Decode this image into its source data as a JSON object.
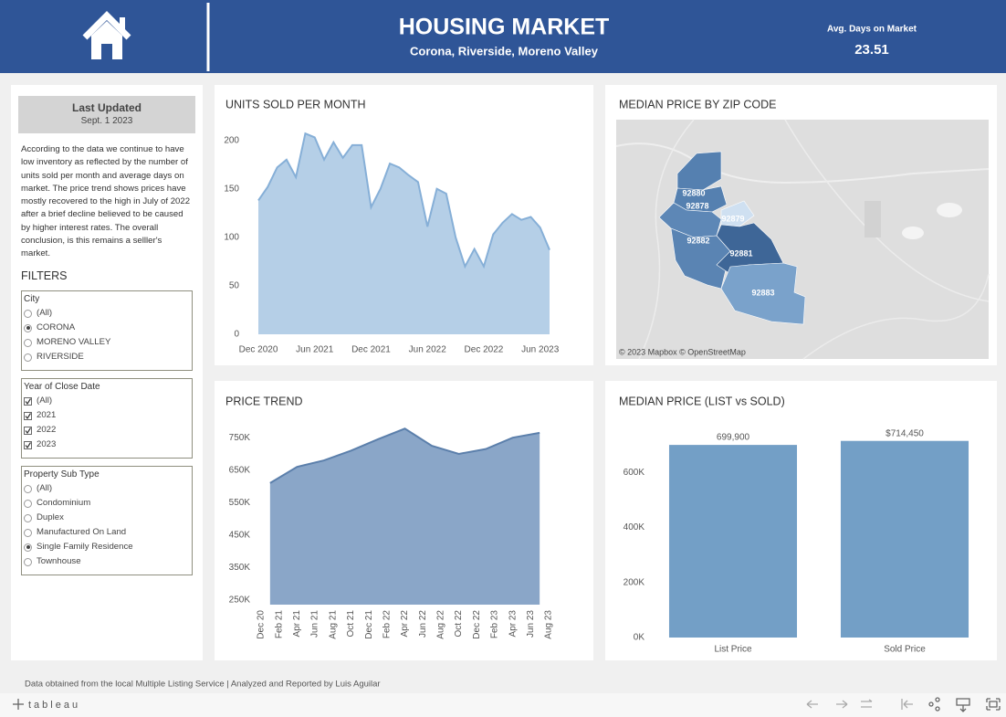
{
  "header": {
    "title": "HOUSING MARKET",
    "subtitle": "Corona, Riverside, Moreno Valley",
    "kpi_label": "Avg. Days on Market",
    "kpi_value": 23.51
  },
  "sidebar": {
    "updated_title": "Last Updated",
    "updated_date": "Sept. 1 2023",
    "note": "According to the data we continue to have low inventory as reflected by the number of units sold per month and average days on market.  The price trend shows prices have mostly recovered to the high in July of 2022 after a brief decline believed to be caused by higher interest rates.  The overall conclusion, is this remains a selller's market.",
    "filters_title": "FILTERS",
    "filters": [
      {
        "title": "City",
        "control": "radio",
        "options": [
          {
            "label": "(All)",
            "checked": false
          },
          {
            "label": "CORONA",
            "checked": true
          },
          {
            "label": "MORENO VALLEY",
            "checked": false
          },
          {
            "label": "RIVERSIDE",
            "checked": false
          }
        ]
      },
      {
        "title": "Year of Close Date",
        "control": "checkbox",
        "options": [
          {
            "label": "(All)",
            "checked": true
          },
          {
            "label": "2021",
            "checked": true
          },
          {
            "label": "2022",
            "checked": true
          },
          {
            "label": "2023",
            "checked": true
          }
        ]
      },
      {
        "title": "Property Sub Type",
        "control": "radio",
        "options": [
          {
            "label": "(All)",
            "checked": false
          },
          {
            "label": "Condominium",
            "checked": false
          },
          {
            "label": "Duplex",
            "checked": false
          },
          {
            "label": "Manufactured On Land",
            "checked": false
          },
          {
            "label": "Single Family Residence",
            "checked": true
          },
          {
            "label": "Townhouse",
            "checked": false
          }
        ]
      }
    ]
  },
  "chart_data": [
    {
      "type": "area",
      "title": "UNITS SOLD PER MONTH",
      "x": [
        "2020-12",
        "2021-01",
        "2021-02",
        "2021-03",
        "2021-04",
        "2021-05",
        "2021-06",
        "2021-07",
        "2021-08",
        "2021-09",
        "2021-10",
        "2021-11",
        "2021-12",
        "2022-01",
        "2022-02",
        "2022-03",
        "2022-04",
        "2022-05",
        "2022-06",
        "2022-07",
        "2022-08",
        "2022-09",
        "2022-10",
        "2022-11",
        "2022-12",
        "2023-01",
        "2023-02",
        "2023-03",
        "2023-04",
        "2023-05",
        "2023-06",
        "2023-07"
      ],
      "values": [
        138,
        152,
        172,
        180,
        162,
        207,
        203,
        180,
        198,
        182,
        195,
        195,
        131,
        150,
        176,
        172,
        164,
        157,
        111,
        150,
        145,
        100,
        70,
        88,
        70,
        103,
        115,
        124,
        118,
        121,
        110,
        87
      ],
      "color": "#86afd7",
      "area_color": "#b5cfe7",
      "xlim": [
        "2020-12",
        "2023-07"
      ],
      "xticks": [
        {
          "value": "2020-12",
          "label": "Dec 2020"
        },
        {
          "value": "2021-06",
          "label": "Jun 2021"
        },
        {
          "value": "2021-12",
          "label": "Dec 2021"
        },
        {
          "value": "2022-06",
          "label": "Jun 2022"
        },
        {
          "value": "2022-12",
          "label": "Dec 2022"
        },
        {
          "value": "2023-06",
          "label": "Jun 2023"
        }
      ],
      "ylim": [
        0,
        210
      ],
      "yticks": [
        0,
        50,
        100,
        150,
        200
      ],
      "grid": false
    },
    {
      "type": "area",
      "title": "PRICE TREND",
      "x": [
        "2021-01",
        "2021-04",
        "2021-07",
        "2021-10",
        "2022-01",
        "2022-04",
        "2022-07",
        "2022-10",
        "2023-01",
        "2023-04",
        "2023-07"
      ],
      "values": [
        610000,
        660000,
        680000,
        710000,
        745000,
        778000,
        725000,
        700000,
        715000,
        750000,
        765000
      ],
      "color": "#5b7fab",
      "area_color": "#8aa6c8",
      "xlim": [
        "2020-12",
        "2023-08"
      ],
      "xticks": [
        {
          "value": "2020-12",
          "label": "Dec 20"
        },
        {
          "value": "2021-02",
          "label": "Feb 21"
        },
        {
          "value": "2021-04",
          "label": "Apr 21"
        },
        {
          "value": "2021-06",
          "label": "Jun 21"
        },
        {
          "value": "2021-08",
          "label": "Aug 21"
        },
        {
          "value": "2021-10",
          "label": "Oct 21"
        },
        {
          "value": "2021-12",
          "label": "Dec 21"
        },
        {
          "value": "2022-02",
          "label": "Feb 22"
        },
        {
          "value": "2022-04",
          "label": "Apr 22"
        },
        {
          "value": "2022-06",
          "label": "Jun 22"
        },
        {
          "value": "2022-08",
          "label": "Aug 22"
        },
        {
          "value": "2022-10",
          "label": "Oct 22"
        },
        {
          "value": "2022-12",
          "label": "Dec 22"
        },
        {
          "value": "2023-02",
          "label": "Feb 23"
        },
        {
          "value": "2023-04",
          "label": "Apr 23"
        },
        {
          "value": "2023-06",
          "label": "Jun 23"
        },
        {
          "value": "2023-08",
          "label": "Aug 23"
        }
      ],
      "ylim": [
        235000,
        790000
      ],
      "yticks": [
        {
          "value": 250000,
          "label": "250K"
        },
        {
          "value": 350000,
          "label": "350K"
        },
        {
          "value": 450000,
          "label": "450K"
        },
        {
          "value": 550000,
          "label": "550K"
        },
        {
          "value": 650000,
          "label": "650K"
        },
        {
          "value": 750000,
          "label": "750K"
        }
      ],
      "grid": false
    },
    {
      "type": "map",
      "title": "MEDIAN PRICE BY ZIP CODE",
      "attribution": "© 2023 Mapbox  © OpenStreetMap",
      "regions": [
        {
          "label": "92880",
          "color": "#5580b0"
        },
        {
          "label": "92878",
          "color": "#5d87b6"
        },
        {
          "label": "92879",
          "color": "#cfe0f1"
        },
        {
          "label": "92882",
          "color": "#5a84b3"
        },
        {
          "label": "92881",
          "color": "#3e6697"
        },
        {
          "label": "92883",
          "color": "#7aa2cb"
        }
      ]
    },
    {
      "type": "bar",
      "title": "MEDIAN PRICE (LIST vs SOLD)",
      "categories": [
        "List Price",
        "Sold Price"
      ],
      "values": [
        699900,
        714450
      ],
      "value_labels": [
        "699,900",
        "$714,450"
      ],
      "color": "#739fc6",
      "ylim": [
        0,
        760000
      ],
      "yticks": [
        {
          "value": 0,
          "label": "0K"
        },
        {
          "value": 200000,
          "label": "200K"
        },
        {
          "value": 400000,
          "label": "400K"
        },
        {
          "value": 600000,
          "label": "600K"
        }
      ],
      "grid": false
    }
  ],
  "footer": {
    "credit": "Data obtained from the local Multiple Listing Service  |  Analyzed and Reported by Luis Aguilar",
    "brand": "tableau"
  }
}
